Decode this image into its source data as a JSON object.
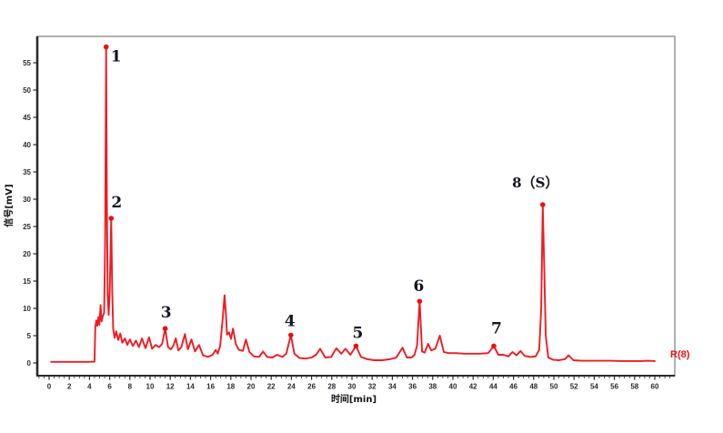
{
  "chart_data": {
    "type": "line",
    "title": "",
    "xlabel": "时间[min]",
    "ylabel": "信号[mV]",
    "right_annotation": "R(8)",
    "xlim": [
      -1.2,
      62.2
    ],
    "ylim": [
      -2.5,
      59.8
    ],
    "x_ticks_start": 0,
    "x_ticks_end": 60,
    "x_tick_step": 2,
    "x_minor_tick_step": 0.5,
    "y_ticks_start": 0,
    "y_ticks_end": 55,
    "y_tick_step": 5,
    "grid": false,
    "legend_position": "none",
    "colors": {
      "trace": "#ed1c24",
      "marker": "#e51212",
      "peak_label": "#14141e",
      "tick_label": "#2b2b33",
      "axis_dark": "#2a2a2a",
      "frame_light": "#909090",
      "annotation": "#f01010",
      "background": "#ffffff"
    },
    "series": [
      {
        "name": "signal",
        "points": [
          [
            0.2,
            0.2
          ],
          [
            1.0,
            0.2
          ],
          [
            2.0,
            0.2
          ],
          [
            3.0,
            0.2
          ],
          [
            4.0,
            0.2
          ],
          [
            4.5,
            0.25
          ],
          [
            4.58,
            6.5
          ],
          [
            4.68,
            7.8
          ],
          [
            4.78,
            6.8
          ],
          [
            4.88,
            8.4
          ],
          [
            4.98,
            7.0
          ],
          [
            5.1,
            10.6
          ],
          [
            5.2,
            7.6
          ],
          [
            5.32,
            8.6
          ],
          [
            5.45,
            9.2
          ],
          [
            5.55,
            22.0
          ],
          [
            5.65,
            57.9
          ],
          [
            5.72,
            30.0
          ],
          [
            5.8,
            12.5
          ],
          [
            5.9,
            8.8
          ],
          [
            6.0,
            13.0
          ],
          [
            6.15,
            26.5
          ],
          [
            6.25,
            13.0
          ],
          [
            6.35,
            6.2
          ],
          [
            6.5,
            4.6
          ],
          [
            6.65,
            5.8
          ],
          [
            6.85,
            4.2
          ],
          [
            7.05,
            5.4
          ],
          [
            7.25,
            3.7
          ],
          [
            7.5,
            4.5
          ],
          [
            7.75,
            3.3
          ],
          [
            8.0,
            4.3
          ],
          [
            8.3,
            3.1
          ],
          [
            8.6,
            4.1
          ],
          [
            8.9,
            2.9
          ],
          [
            9.2,
            4.5
          ],
          [
            9.55,
            2.7
          ],
          [
            9.9,
            4.7
          ],
          [
            10.2,
            2.6
          ],
          [
            10.55,
            3.3
          ],
          [
            10.9,
            2.9
          ],
          [
            11.2,
            3.5
          ],
          [
            11.5,
            6.3
          ],
          [
            11.78,
            2.9
          ],
          [
            12.05,
            2.5
          ],
          [
            12.3,
            3.1
          ],
          [
            12.55,
            4.5
          ],
          [
            12.8,
            2.3
          ],
          [
            13.1,
            2.9
          ],
          [
            13.45,
            5.3
          ],
          [
            13.75,
            2.5
          ],
          [
            14.1,
            4.3
          ],
          [
            14.45,
            2.1
          ],
          [
            14.85,
            3.3
          ],
          [
            15.25,
            1.4
          ],
          [
            15.75,
            1.1
          ],
          [
            16.2,
            1.5
          ],
          [
            16.5,
            2.4
          ],
          [
            16.7,
            1.7
          ],
          [
            16.95,
            3.1
          ],
          [
            17.2,
            8.2
          ],
          [
            17.38,
            12.4
          ],
          [
            17.52,
            8.8
          ],
          [
            17.62,
            5.2
          ],
          [
            17.82,
            5.6
          ],
          [
            18.02,
            4.4
          ],
          [
            18.22,
            6.3
          ],
          [
            18.5,
            3.4
          ],
          [
            18.8,
            2.4
          ],
          [
            19.2,
            2.2
          ],
          [
            19.5,
            4.3
          ],
          [
            19.85,
            2.0
          ],
          [
            20.3,
            1.2
          ],
          [
            20.8,
            1.1
          ],
          [
            21.2,
            2.1
          ],
          [
            21.6,
            1.1
          ],
          [
            22.1,
            1.0
          ],
          [
            22.6,
            1.5
          ],
          [
            23.1,
            1.1
          ],
          [
            23.5,
            1.7
          ],
          [
            23.95,
            5.1
          ],
          [
            24.3,
            1.7
          ],
          [
            24.8,
            0.9
          ],
          [
            25.4,
            0.8
          ],
          [
            26.0,
            1.0
          ],
          [
            26.45,
            1.5
          ],
          [
            26.85,
            2.6
          ],
          [
            27.35,
            1.0
          ],
          [
            27.95,
            1.1
          ],
          [
            28.45,
            2.7
          ],
          [
            28.95,
            1.7
          ],
          [
            29.35,
            2.6
          ],
          [
            29.85,
            1.5
          ],
          [
            30.4,
            3.1
          ],
          [
            30.9,
            1.1
          ],
          [
            31.5,
            0.7
          ],
          [
            32.2,
            0.5
          ],
          [
            33.0,
            0.5
          ],
          [
            33.8,
            0.7
          ],
          [
            34.4,
            1.0
          ],
          [
            35.0,
            2.8
          ],
          [
            35.45,
            1.0
          ],
          [
            35.9,
            1.0
          ],
          [
            36.2,
            1.5
          ],
          [
            36.45,
            3.2
          ],
          [
            36.7,
            11.3
          ],
          [
            36.95,
            2.1
          ],
          [
            37.2,
            1.9
          ],
          [
            37.55,
            3.5
          ],
          [
            37.85,
            2.3
          ],
          [
            38.25,
            2.6
          ],
          [
            38.7,
            5.0
          ],
          [
            39.1,
            2.0
          ],
          [
            39.6,
            1.8
          ],
          [
            40.3,
            1.8
          ],
          [
            41.1,
            1.7
          ],
          [
            41.9,
            1.7
          ],
          [
            42.7,
            1.7
          ],
          [
            43.5,
            1.8
          ],
          [
            44.05,
            3.1
          ],
          [
            44.5,
            1.5
          ],
          [
            45.0,
            1.5
          ],
          [
            45.5,
            1.2
          ],
          [
            45.9,
            2.0
          ],
          [
            46.3,
            1.4
          ],
          [
            46.7,
            2.2
          ],
          [
            47.1,
            1.3
          ],
          [
            47.7,
            1.1
          ],
          [
            48.2,
            1.2
          ],
          [
            48.55,
            2.4
          ],
          [
            48.75,
            10.0
          ],
          [
            48.9,
            29.0
          ],
          [
            49.05,
            17.0
          ],
          [
            49.2,
            5.0
          ],
          [
            49.45,
            1.0
          ],
          [
            49.9,
            0.6
          ],
          [
            50.5,
            0.5
          ],
          [
            51.1,
            0.7
          ],
          [
            51.45,
            1.4
          ],
          [
            51.95,
            0.5
          ],
          [
            52.7,
            0.4
          ],
          [
            53.6,
            0.4
          ],
          [
            54.6,
            0.4
          ],
          [
            55.6,
            0.4
          ],
          [
            56.6,
            0.35
          ],
          [
            57.6,
            0.35
          ],
          [
            58.6,
            0.35
          ],
          [
            59.3,
            0.4
          ],
          [
            60.0,
            0.35
          ]
        ]
      }
    ],
    "peaks": [
      {
        "label": "1",
        "t": 5.65,
        "v": 57.9,
        "dx": 11,
        "dy": 16
      },
      {
        "label": "2",
        "t": 6.15,
        "v": 26.5,
        "dx": 6,
        "dy": -12
      },
      {
        "label": "3",
        "t": 11.5,
        "v": 6.3,
        "dx": 1,
        "dy": -12
      },
      {
        "label": "4",
        "t": 23.95,
        "v": 5.1,
        "dx": -1,
        "dy": -10
      },
      {
        "label": "5",
        "t": 30.4,
        "v": 3.1,
        "dx": 2,
        "dy": -9
      },
      {
        "label": "6",
        "t": 36.7,
        "v": 11.3,
        "dx": -1,
        "dy": -11
      },
      {
        "label": "7",
        "t": 44.05,
        "v": 3.1,
        "dx": 3,
        "dy": -14
      },
      {
        "label": "8（S）",
        "t": 48.9,
        "v": 29.0,
        "dx": -8,
        "dy": -19
      }
    ]
  }
}
